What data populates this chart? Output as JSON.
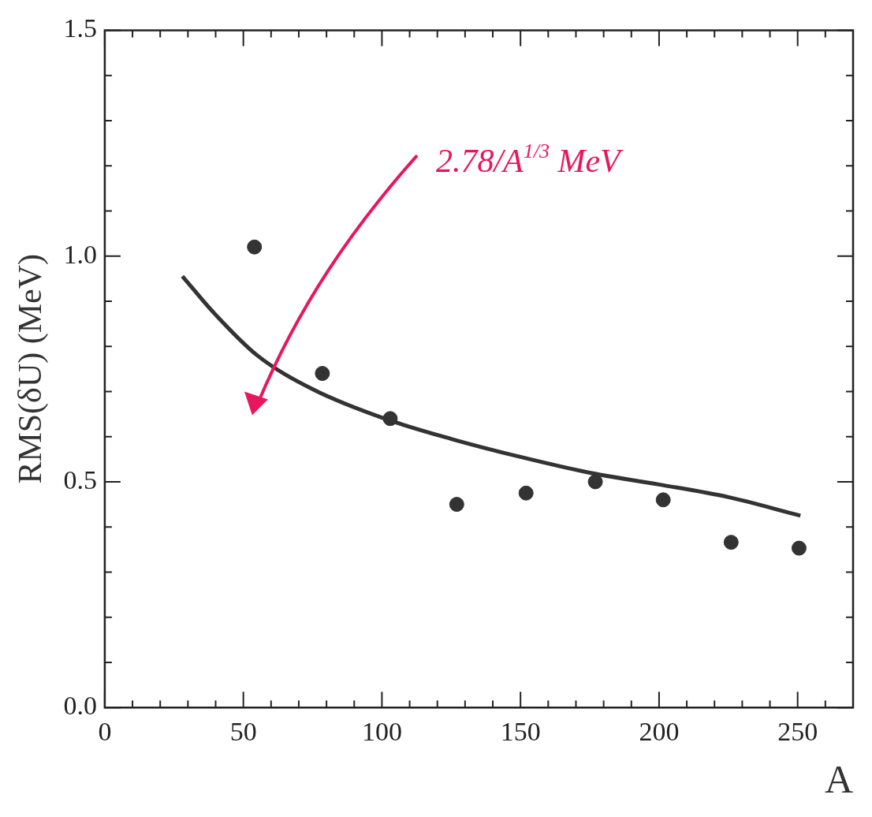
{
  "chart_data": {
    "type": "scatter",
    "xlabel": "A",
    "ylabel": "RMS(δU) (MeV)",
    "xlim": [
      0,
      270
    ],
    "ylim": [
      0,
      1.5
    ],
    "xticks": [
      0,
      {
        "value": 10,
        "label": null
      },
      {
        "value": 20,
        "label": null
      },
      {
        "value": 30,
        "label": null
      },
      {
        "value": 40,
        "label": null
      },
      50,
      {
        "value": 60,
        "label": null
      },
      {
        "value": 70,
        "label": null
      },
      {
        "value": 80,
        "label": null
      },
      {
        "value": 90,
        "label": null
      },
      100,
      {
        "value": 110,
        "label": null
      },
      {
        "value": 120,
        "label": null
      },
      {
        "value": 130,
        "label": null
      },
      {
        "value": 140,
        "label": null
      },
      150,
      {
        "value": 160,
        "label": null
      },
      {
        "value": 170,
        "label": null
      },
      {
        "value": 180,
        "label": null
      },
      {
        "value": 190,
        "label": null
      },
      200,
      {
        "value": 210,
        "label": null
      },
      {
        "value": 220,
        "label": null
      },
      {
        "value": 230,
        "label": null
      },
      {
        "value": 240,
        "label": null
      },
      250,
      {
        "value": 260,
        "label": null
      }
    ],
    "yticks": [
      {
        "value": 0,
        "label": "0.0"
      },
      {
        "value": 0.1,
        "label": null
      },
      {
        "value": 0.2,
        "label": null
      },
      {
        "value": 0.3,
        "label": null
      },
      {
        "value": 0.4,
        "label": null
      },
      0.5,
      {
        "value": 0.6,
        "label": null
      },
      {
        "value": 0.7,
        "label": null
      },
      {
        "value": 0.8,
        "label": null
      },
      {
        "value": 0.9,
        "label": null
      },
      {
        "value": 1,
        "label": "1.0"
      },
      {
        "value": 1.1,
        "label": null
      },
      {
        "value": 1.2,
        "label": null
      },
      {
        "value": 1.3,
        "label": null
      },
      {
        "value": 1.4,
        "label": null
      },
      1.5
    ],
    "marker": "circle",
    "grid": false,
    "legend": false,
    "series": [
      {
        "type": "scatter",
        "color": "#333333",
        "x": [
          54,
          78.5,
          103,
          127,
          152,
          177,
          201.5,
          226,
          250.5
        ],
        "values": [
          1.02,
          0.74,
          0.64,
          0.45,
          0.475,
          0.5,
          0.46,
          0.366,
          0.353
        ]
      },
      {
        "type": "line",
        "color": "#333333",
        "marker": "none",
        "x": [
          28,
          40,
          55,
          75,
          100,
          125,
          150,
          175,
          200,
          225,
          251
        ],
        "values": [
          0.955,
          0.87,
          0.78,
          0.705,
          0.642,
          0.595,
          0.555,
          0.52,
          0.494,
          0.466,
          0.425
        ]
      }
    ],
    "annotations": [
      "2.78/A$^{1/3}$ MeV"
    ]
  }
}
